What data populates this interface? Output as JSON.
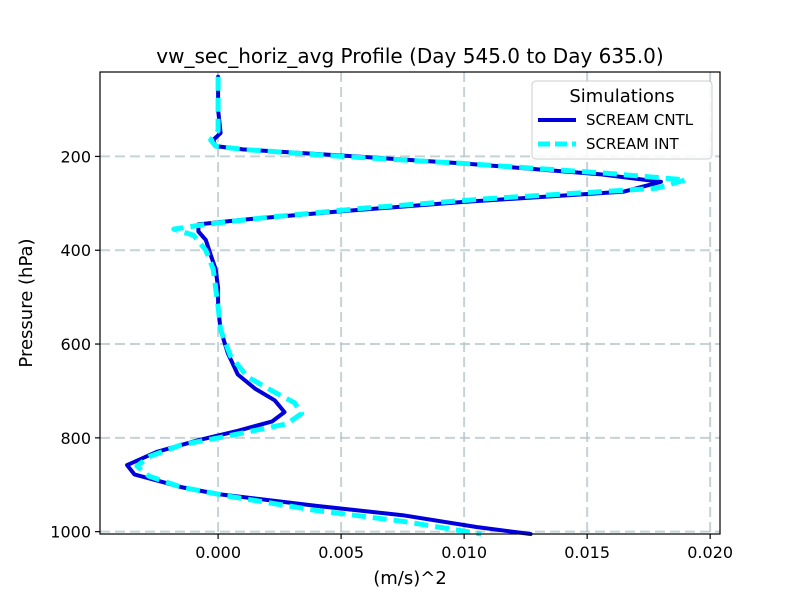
{
  "chart_data": {
    "type": "line",
    "title": "vw_sec_horiz_avg Profile (Day 545.0 to Day 635.0)",
    "xlabel": "(m/s)^2",
    "ylabel": "Pressure (hPa)",
    "xlim": [
      -0.0048,
      0.0204
    ],
    "ylim": [
      1005,
      20
    ],
    "y_inverted": true,
    "grid": true,
    "xticks": [
      0.0,
      0.005,
      0.01,
      0.015,
      0.02
    ],
    "xtick_labels": [
      "0.000",
      "0.005",
      "0.010",
      "0.015",
      "0.020"
    ],
    "yticks": [
      200,
      400,
      600,
      800,
      1000
    ],
    "ytick_labels": [
      "200",
      "400",
      "600",
      "800",
      "1000"
    ],
    "legend": {
      "title": "Simulations",
      "location": "upper right"
    },
    "series": [
      {
        "name": "SCREAM CNTL",
        "color": "#0000dd",
        "linestyle": "solid",
        "points": [
          [
            0.0,
            30
          ],
          [
            0.0,
            100
          ],
          [
            0.0001,
            150
          ],
          [
            -0.0002,
            165
          ],
          [
            -0.0001,
            178
          ],
          [
            0.001,
            185
          ],
          [
            0.005,
            198
          ],
          [
            0.01,
            215
          ],
          [
            0.0155,
            238
          ],
          [
            0.018,
            254
          ],
          [
            0.0165,
            275
          ],
          [
            0.01,
            297
          ],
          [
            0.005,
            317
          ],
          [
            0.001,
            335
          ],
          [
            -0.0008,
            345
          ],
          [
            -0.0008,
            360
          ],
          [
            -0.0005,
            378
          ],
          [
            -0.0003,
            410
          ],
          [
            -0.0001,
            440
          ],
          [
            0.0,
            480
          ],
          [
            0.0,
            520
          ],
          [
            0.0001,
            570
          ],
          [
            0.0004,
            620
          ],
          [
            0.0008,
            665
          ],
          [
            0.0015,
            695
          ],
          [
            0.0023,
            720
          ],
          [
            0.0027,
            745
          ],
          [
            0.0022,
            765
          ],
          [
            0.0008,
            785
          ],
          [
            -0.0008,
            805
          ],
          [
            -0.0025,
            830
          ],
          [
            -0.0037,
            858
          ],
          [
            -0.0034,
            878
          ],
          [
            -0.0015,
            905
          ],
          [
            0.0,
            920
          ],
          [
            0.004,
            945
          ],
          [
            0.0075,
            965
          ],
          [
            0.0105,
            990
          ],
          [
            0.0127,
            1005
          ]
        ]
      },
      {
        "name": "SCREAM INT",
        "color": "#00ffff",
        "linestyle": "dashed",
        "points": [
          [
            0.0,
            30
          ],
          [
            0.0,
            100
          ],
          [
            0.0,
            145
          ],
          [
            -0.0003,
            165
          ],
          [
            -0.0001,
            178
          ],
          [
            0.001,
            185
          ],
          [
            0.005,
            200
          ],
          [
            0.01,
            215
          ],
          [
            0.0158,
            236
          ],
          [
            0.019,
            250
          ],
          [
            0.0178,
            268
          ],
          [
            0.011,
            290
          ],
          [
            0.006,
            310
          ],
          [
            0.002,
            330
          ],
          [
            -0.0005,
            345
          ],
          [
            -0.0018,
            355
          ],
          [
            -0.001,
            368
          ],
          [
            -0.0005,
            400
          ],
          [
            -0.0002,
            440
          ],
          [
            -0.0001,
            480
          ],
          [
            0.0,
            520
          ],
          [
            0.0001,
            570
          ],
          [
            0.0005,
            625
          ],
          [
            0.0012,
            670
          ],
          [
            0.0022,
            700
          ],
          [
            0.0031,
            725
          ],
          [
            0.0034,
            748
          ],
          [
            0.0028,
            770
          ],
          [
            0.0005,
            795
          ],
          [
            -0.0015,
            815
          ],
          [
            -0.0028,
            840
          ],
          [
            -0.0033,
            860
          ],
          [
            -0.0028,
            882
          ],
          [
            -0.0015,
            905
          ],
          [
            0.0005,
            925
          ],
          [
            0.004,
            955
          ],
          [
            0.0075,
            978
          ],
          [
            0.0107,
            1005
          ]
        ]
      }
    ]
  }
}
